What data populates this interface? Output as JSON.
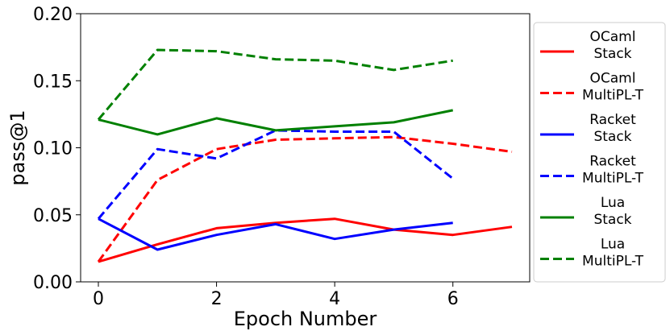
{
  "chart_data": {
    "type": "line",
    "xlabel": "Epoch Number",
    "ylabel": "pass@1",
    "xlim": [
      -0.3,
      7.3
    ],
    "ylim": [
      0,
      0.2
    ],
    "xticks": [
      0,
      2,
      4,
      6
    ],
    "xtick_labels": [
      "0",
      "2",
      "4",
      "6"
    ],
    "yticks": [
      0,
      0.05,
      0.1,
      0.15,
      0.2
    ],
    "ytick_labels": [
      "0.00",
      "0.05",
      "0.10",
      "0.15",
      "0.20"
    ],
    "grid": false,
    "legend_placement": "right outside",
    "series": [
      {
        "name": "OCaml Stack",
        "label_lines": [
          "OCaml",
          "Stack"
        ],
        "color": "#ff0000",
        "style": "solid",
        "x": [
          0,
          1,
          2,
          3,
          4,
          5,
          6,
          7
        ],
        "y": [
          0.015,
          0.028,
          0.04,
          0.044,
          0.047,
          0.039,
          0.035,
          0.041
        ]
      },
      {
        "name": "OCaml MultiPL-T",
        "label_lines": [
          "OCaml",
          "MultiPL-T"
        ],
        "color": "#ff0000",
        "style": "dashed",
        "x": [
          0,
          1,
          2,
          3,
          4,
          5,
          6,
          7
        ],
        "y": [
          0.015,
          0.076,
          0.099,
          0.106,
          0.107,
          0.108,
          0.103,
          0.097
        ]
      },
      {
        "name": "Racket Stack",
        "label_lines": [
          "Racket",
          "Stack"
        ],
        "color": "#0000ff",
        "style": "solid",
        "x": [
          0,
          1,
          2,
          3,
          4,
          5,
          6
        ],
        "y": [
          0.047,
          0.024,
          0.035,
          0.043,
          0.032,
          0.039,
          0.044
        ]
      },
      {
        "name": "Racket MultiPL-T",
        "label_lines": [
          "Racket",
          "MultiPL-T"
        ],
        "color": "#0000ff",
        "style": "dashed",
        "x": [
          0,
          1,
          2,
          3,
          4,
          5,
          6
        ],
        "y": [
          0.047,
          0.099,
          0.092,
          0.113,
          0.112,
          0.112,
          0.077
        ]
      },
      {
        "name": "Lua Stack",
        "label_lines": [
          "Lua",
          "Stack"
        ],
        "color": "#008000",
        "style": "solid",
        "x": [
          0,
          1,
          2,
          3,
          4,
          5,
          6
        ],
        "y": [
          0.121,
          0.11,
          0.122,
          0.113,
          0.116,
          0.119,
          0.128
        ]
      },
      {
        "name": "Lua MultiPL-T",
        "label_lines": [
          "Lua",
          "MultiPL-T"
        ],
        "color": "#008000",
        "style": "dashed",
        "x": [
          0,
          1,
          2,
          3,
          4,
          5,
          6
        ],
        "y": [
          0.121,
          0.173,
          0.172,
          0.166,
          0.165,
          0.158,
          0.165
        ]
      }
    ]
  }
}
